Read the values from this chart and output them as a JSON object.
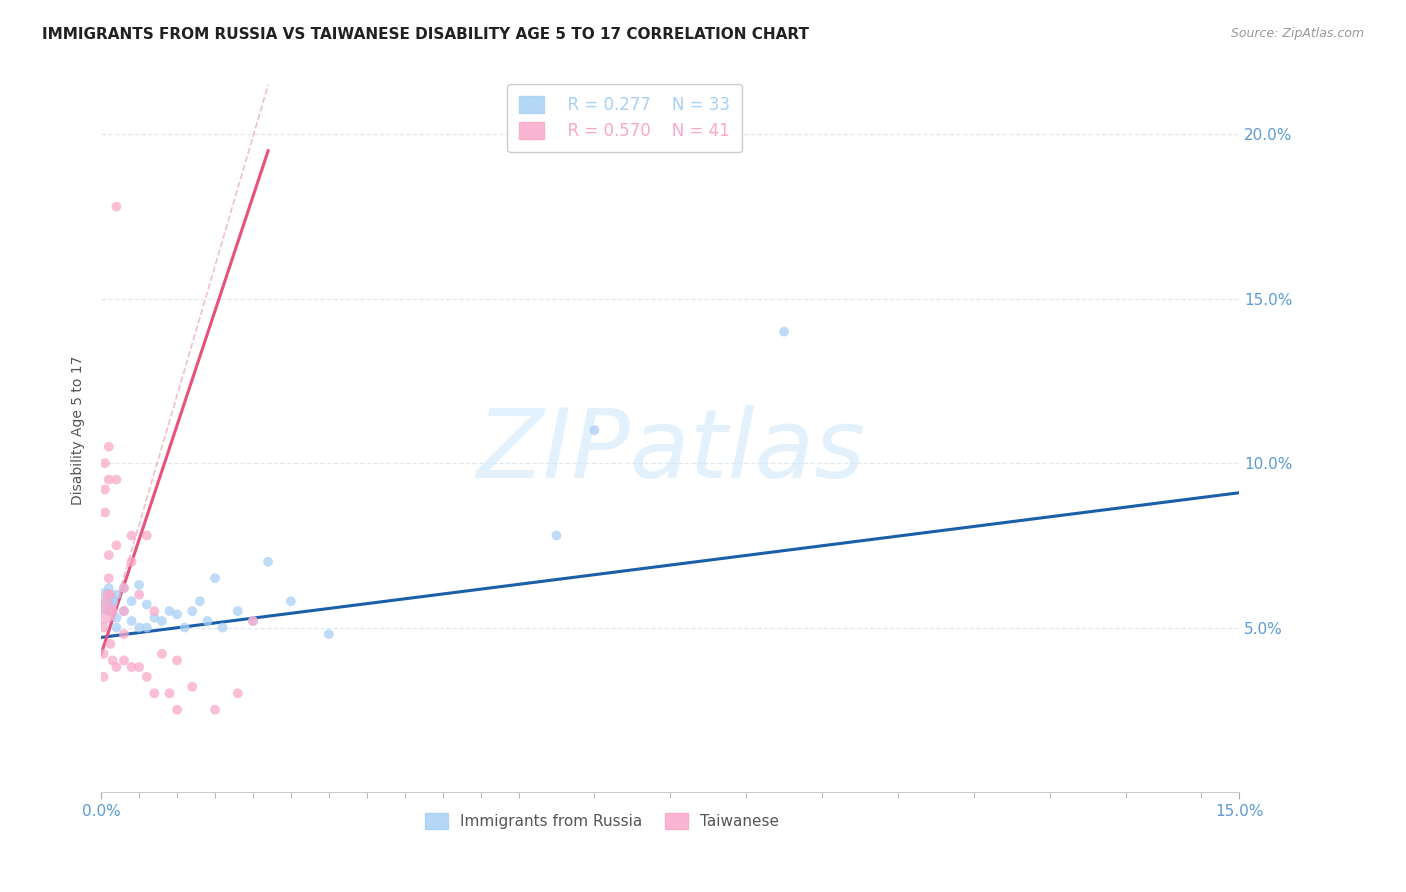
{
  "title": "IMMIGRANTS FROM RUSSIA VS TAIWANESE DISABILITY AGE 5 TO 17 CORRELATION CHART",
  "source": "Source: ZipAtlas.com",
  "ylabel": "Disability Age 5 to 17",
  "xlim": [
    0,
    0.15
  ],
  "ylim": [
    0,
    0.22
  ],
  "yticks_right": [
    0.05,
    0.1,
    0.15,
    0.2
  ],
  "ytick_right_labels": [
    "5.0%",
    "10.0%",
    "15.0%",
    "20.0%"
  ],
  "xtick_positions": [
    0.0,
    0.15
  ],
  "xtick_labels": [
    "0.0%",
    "15.0%"
  ],
  "xtick_minor_positions": [
    0.005,
    0.01,
    0.015,
    0.02,
    0.025,
    0.03,
    0.035,
    0.04,
    0.045,
    0.05,
    0.055,
    0.065,
    0.075,
    0.085,
    0.095,
    0.105,
    0.115,
    0.125,
    0.135,
    0.145
  ],
  "legend_entries": [
    {
      "label": "Immigrants from Russia",
      "R": "0.277",
      "N": "33",
      "color": "#a8d0f5"
    },
    {
      "label": "Taiwanese",
      "R": "0.570",
      "N": "41",
      "color": "#f9a8c9"
    }
  ],
  "blue_scatter_x": [
    0.0005,
    0.001,
    0.001,
    0.0015,
    0.002,
    0.002,
    0.002,
    0.003,
    0.003,
    0.004,
    0.004,
    0.005,
    0.005,
    0.006,
    0.006,
    0.007,
    0.008,
    0.009,
    0.01,
    0.011,
    0.012,
    0.013,
    0.014,
    0.015,
    0.016,
    0.018,
    0.02,
    0.022,
    0.025,
    0.06,
    0.065,
    0.09,
    0.03
  ],
  "blue_scatter_y": [
    0.058,
    0.062,
    0.055,
    0.058,
    0.06,
    0.053,
    0.05,
    0.062,
    0.055,
    0.058,
    0.052,
    0.063,
    0.05,
    0.057,
    0.05,
    0.053,
    0.052,
    0.055,
    0.054,
    0.05,
    0.055,
    0.058,
    0.052,
    0.065,
    0.05,
    0.055,
    0.052,
    0.07,
    0.058,
    0.078,
    0.11,
    0.14,
    0.048
  ],
  "blue_scatter_sizes": [
    350,
    50,
    50,
    50,
    50,
    50,
    50,
    50,
    50,
    50,
    50,
    50,
    50,
    50,
    50,
    50,
    50,
    50,
    50,
    50,
    50,
    50,
    50,
    50,
    50,
    50,
    50,
    50,
    50,
    50,
    50,
    50,
    50
  ],
  "pink_scatter_x": [
    0.0003,
    0.0003,
    0.0003,
    0.0005,
    0.0005,
    0.0005,
    0.0008,
    0.001,
    0.001,
    0.001,
    0.001,
    0.0012,
    0.0012,
    0.0015,
    0.0015,
    0.002,
    0.002,
    0.002,
    0.002,
    0.003,
    0.003,
    0.003,
    0.003,
    0.004,
    0.004,
    0.004,
    0.005,
    0.005,
    0.006,
    0.006,
    0.007,
    0.007,
    0.008,
    0.009,
    0.01,
    0.01,
    0.012,
    0.015,
    0.018,
    0.02,
    0.0003
  ],
  "pink_scatter_y": [
    0.055,
    0.05,
    0.042,
    0.1,
    0.092,
    0.085,
    0.06,
    0.105,
    0.095,
    0.072,
    0.065,
    0.06,
    0.045,
    0.055,
    0.04,
    0.178,
    0.095,
    0.075,
    0.038,
    0.062,
    0.055,
    0.048,
    0.04,
    0.078,
    0.07,
    0.038,
    0.06,
    0.038,
    0.078,
    0.035,
    0.055,
    0.03,
    0.042,
    0.03,
    0.04,
    0.025,
    0.032,
    0.025,
    0.03,
    0.052,
    0.035
  ],
  "pink_scatter_sizes": [
    350,
    50,
    50,
    50,
    50,
    50,
    50,
    50,
    50,
    50,
    50,
    50,
    50,
    50,
    50,
    50,
    50,
    50,
    50,
    50,
    50,
    50,
    50,
    50,
    50,
    50,
    50,
    50,
    50,
    50,
    50,
    50,
    50,
    50,
    50,
    50,
    50,
    50,
    50,
    50,
    50
  ],
  "blue_line_x": [
    0.0,
    0.15
  ],
  "blue_line_y": [
    0.047,
    0.091
  ],
  "pink_line_x": [
    0.0,
    0.022
  ],
  "pink_line_y": [
    0.042,
    0.195
  ],
  "diag_line_x": [
    0.0,
    0.022
  ],
  "diag_line_y": [
    0.042,
    0.215
  ],
  "watermark": "ZIPatlas",
  "blue_color": "#a8d0f5",
  "pink_color": "#f9a8c9",
  "blue_line_color": "#1a5fa8",
  "pink_line_color": "#e8527a",
  "diag_line_color": "#e8b0c0",
  "title_color": "#212121",
  "axis_color": "#5b9bd5",
  "grid_color": "#e0e8f0",
  "background_color": "#ffffff",
  "title_fontsize": 11,
  "axis_label_fontsize": 10,
  "tick_fontsize": 11
}
